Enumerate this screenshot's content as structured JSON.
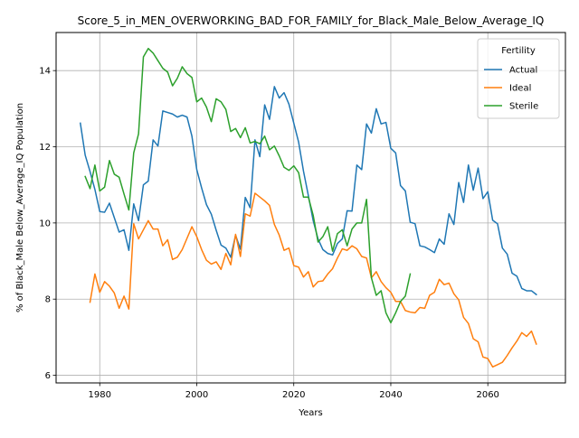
{
  "chart_data": {
    "type": "line",
    "title": "Score_5_in_MEN_OVERWORKING_BAD_FOR_FAMILY_for_Black_Male_Below_Average_IQ",
    "xlabel": "Years",
    "ylabel": "% of Black_Male Below_Average_IQ Population",
    "xlim": [
      1971,
      2076
    ],
    "ylim": [
      5.8,
      15.0
    ],
    "xticks": [
      1980,
      2000,
      2020,
      2040,
      2060
    ],
    "yticks": [
      6,
      8,
      10,
      12,
      14
    ],
    "grid": true,
    "legend": {
      "title": "Fertility",
      "position": "top-right"
    },
    "colors": {
      "Actual": "#1f77b4",
      "Ideal": "#ff7f0e",
      "Sterile": "#2ca02c"
    },
    "series": [
      {
        "name": "Actual",
        "start_year": 1976,
        "values": [
          12.62,
          11.78,
          11.35,
          10.88,
          10.3,
          10.28,
          10.52,
          10.14,
          9.76,
          9.82,
          9.28,
          10.5,
          10.06,
          11.0,
          11.1,
          12.18,
          12.02,
          12.94,
          12.9,
          12.86,
          12.78,
          12.83,
          12.78,
          12.28,
          11.4,
          10.92,
          10.48,
          10.23,
          9.81,
          9.42,
          9.34,
          9.1,
          9.68,
          9.31,
          10.67,
          10.4,
          12.18,
          11.74,
          13.1,
          12.72,
          13.58,
          13.28,
          13.42,
          13.12,
          12.62,
          12.12,
          11.36,
          10.72,
          10.06,
          9.58,
          9.3,
          9.2,
          9.16,
          9.46,
          9.58,
          10.32,
          10.31,
          11.52,
          11.4,
          12.6,
          12.36,
          13.0,
          12.6,
          12.64,
          11.96,
          11.84,
          10.98,
          10.84,
          10.02,
          9.98,
          9.4,
          9.37,
          9.3,
          9.22,
          9.58,
          9.44,
          10.24,
          9.96,
          11.06,
          10.54,
          11.52,
          10.86,
          11.44,
          10.64,
          10.82,
          10.07,
          9.98,
          9.34,
          9.18,
          8.68,
          8.6,
          8.28,
          8.22,
          8.22,
          8.12
        ]
      },
      {
        "name": "Ideal",
        "start_year": 1978,
        "values": [
          7.92,
          8.66,
          8.18,
          8.46,
          8.34,
          8.16,
          7.76,
          8.08,
          7.74,
          9.98,
          9.58,
          9.82,
          10.06,
          9.84,
          9.84,
          9.4,
          9.56,
          9.04,
          9.1,
          9.3,
          9.6,
          9.9,
          9.64,
          9.3,
          9.02,
          8.92,
          8.98,
          8.78,
          9.2,
          8.9,
          9.7,
          9.12,
          10.24,
          10.18,
          10.78,
          10.68,
          10.58,
          10.46,
          9.96,
          9.68,
          9.28,
          9.34,
          8.88,
          8.84,
          8.58,
          8.72,
          8.32,
          8.46,
          8.48,
          8.66,
          8.8,
          9.08,
          9.32,
          9.28,
          9.4,
          9.32,
          9.12,
          9.08,
          8.56,
          8.72,
          8.46,
          8.3,
          8.18,
          7.94,
          7.94,
          7.7,
          7.66,
          7.64,
          7.78,
          7.76,
          8.1,
          8.18,
          8.52,
          8.38,
          8.42,
          8.14,
          7.98,
          7.52,
          7.36,
          6.96,
          6.88,
          6.48,
          6.44,
          6.22,
          6.28,
          6.34,
          6.52,
          6.72,
          6.9,
          7.12,
          7.02,
          7.16,
          6.82
        ]
      },
      {
        "name": "Sterile",
        "start_year": 1977,
        "values": [
          11.22,
          10.9,
          11.52,
          10.84,
          10.94,
          11.64,
          11.28,
          11.2,
          10.76,
          10.34,
          11.84,
          12.34,
          14.36,
          14.58,
          14.46,
          14.26,
          14.06,
          13.96,
          13.6,
          13.8,
          14.1,
          13.92,
          13.82,
          13.18,
          13.28,
          13.04,
          12.66,
          13.26,
          13.18,
          12.98,
          12.4,
          12.48,
          12.24,
          12.5,
          12.1,
          12.14,
          12.08,
          12.28,
          11.92,
          12.02,
          11.76,
          11.46,
          11.38,
          11.5,
          11.32,
          10.68,
          10.68,
          10.2,
          9.5,
          9.64,
          9.9,
          9.26,
          9.72,
          9.82,
          9.4,
          9.84,
          10.0,
          10.0,
          10.62,
          8.56,
          8.1,
          8.22,
          7.64,
          7.38,
          7.64,
          7.94,
          8.08,
          8.66
        ]
      }
    ]
  }
}
